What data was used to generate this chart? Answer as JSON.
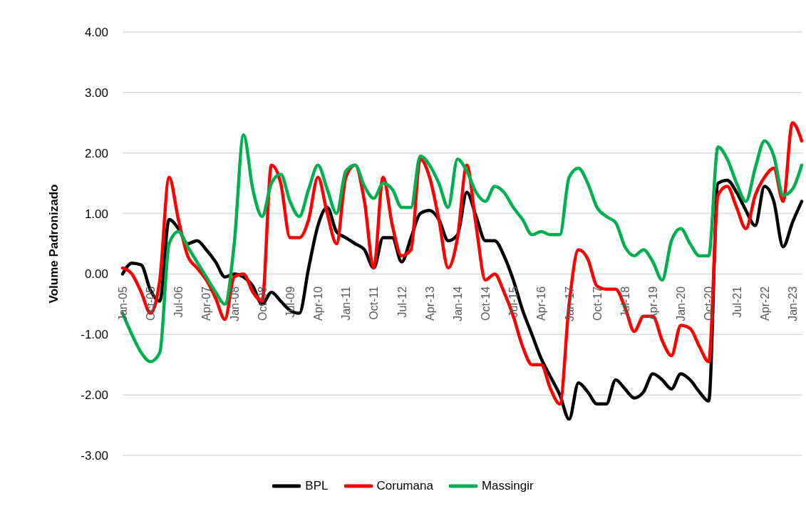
{
  "chart_data": {
    "type": "line",
    "ylabel": "Volume Padronizado",
    "categories": [
      "Jan-05",
      null,
      null,
      "Oct-05",
      null,
      null,
      "Jul-06",
      null,
      null,
      "Apr-07",
      null,
      null,
      "Jan-08",
      null,
      null,
      "Oct-08",
      null,
      null,
      "Jul-09",
      null,
      null,
      "Apr-10",
      null,
      null,
      "Jan-11",
      null,
      null,
      "Oct-11",
      null,
      null,
      "Jul-12",
      null,
      null,
      "Apr-13",
      null,
      null,
      "Jan-14",
      null,
      null,
      "Oct-14",
      null,
      null,
      "Jul-15",
      null,
      null,
      "Apr-16",
      null,
      null,
      "Jan-17",
      null,
      null,
      "Oct-17",
      null,
      null,
      "Jul-18",
      null,
      null,
      "Apr-19",
      null,
      null,
      "Jan-20",
      null,
      null,
      "Oct-20",
      null,
      null,
      "Jul-21",
      null,
      null,
      "Apr-22",
      null,
      null,
      "Jan-23",
      null
    ],
    "series": [
      {
        "name": "BPL",
        "color": "#000000",
        "values": [
          0.0,
          0.18,
          0.15,
          -0.27,
          -0.45,
          0.9,
          0.75,
          0.5,
          0.55,
          0.4,
          0.2,
          -0.05,
          0.0,
          -0.05,
          -0.2,
          -0.5,
          -0.3,
          -0.45,
          -0.6,
          -0.65,
          0.1,
          0.8,
          1.1,
          0.7,
          0.6,
          0.5,
          0.4,
          0.1,
          0.6,
          0.6,
          0.2,
          0.6,
          1.0,
          1.05,
          0.9,
          0.55,
          0.65,
          1.35,
          0.95,
          0.55,
          0.55,
          0.3,
          -0.1,
          -0.6,
          -1.0,
          -1.4,
          -1.7,
          -2.0,
          -2.4,
          -1.8,
          -1.95,
          -2.15,
          -2.15,
          -1.75,
          -1.9,
          -2.05,
          -1.95,
          -1.65,
          -1.75,
          -1.9,
          -1.65,
          -1.75,
          -1.95,
          -2.1,
          1.5,
          1.55,
          1.35,
          1.05,
          0.8,
          1.45,
          1.2,
          0.45,
          0.85,
          1.2
        ]
      },
      {
        "name": "Corumana",
        "color": "#ff0000",
        "values": [
          0.1,
          0.0,
          -0.3,
          -0.65,
          -0.1,
          1.6,
          0.9,
          0.3,
          0.1,
          -0.1,
          -0.4,
          -0.75,
          -0.05,
          0.0,
          -0.3,
          -0.45,
          1.8,
          1.5,
          0.6,
          0.6,
          0.9,
          1.6,
          1.0,
          0.5,
          1.6,
          1.8,
          1.2,
          0.1,
          1.6,
          0.8,
          0.3,
          0.4,
          1.9,
          1.6,
          0.9,
          0.1,
          0.6,
          1.8,
          0.8,
          -0.1,
          0.0,
          -0.3,
          -0.7,
          -1.2,
          -1.5,
          -1.5,
          -1.9,
          -2.15,
          -0.5,
          0.4,
          0.25,
          -0.2,
          -0.25,
          -0.25,
          -0.55,
          -0.95,
          -0.7,
          -0.7,
          -1.1,
          -1.35,
          -0.85,
          -0.9,
          -1.2,
          -1.45,
          1.3,
          1.45,
          1.1,
          0.75,
          1.3,
          1.6,
          1.75,
          1.2,
          2.5,
          2.2
        ]
      },
      {
        "name": "Massingir",
        "color": "#00b050",
        "values": [
          -0.65,
          -1.0,
          -1.3,
          -1.45,
          -1.3,
          0.5,
          0.7,
          0.45,
          0.2,
          -0.05,
          -0.3,
          -0.5,
          0.5,
          2.3,
          1.4,
          0.95,
          1.5,
          1.65,
          1.2,
          0.95,
          1.4,
          1.8,
          1.4,
          1.0,
          1.7,
          1.8,
          1.45,
          1.25,
          1.5,
          1.4,
          1.1,
          1.1,
          1.95,
          1.8,
          1.5,
          1.1,
          1.9,
          1.7,
          1.35,
          1.2,
          1.45,
          1.35,
          1.1,
          0.9,
          0.65,
          0.7,
          0.65,
          0.65,
          1.6,
          1.75,
          1.5,
          1.1,
          0.95,
          0.85,
          0.45,
          0.3,
          0.4,
          0.2,
          -0.1,
          0.55,
          0.75,
          0.5,
          0.3,
          0.3,
          2.1,
          1.9,
          1.5,
          1.2,
          1.75,
          2.2,
          1.95,
          1.3,
          1.4,
          1.8
        ]
      }
    ],
    "ylim": [
      -3,
      4
    ],
    "yticks": [
      {
        "value": -3,
        "label": "-3.00"
      },
      {
        "value": -2,
        "label": "-2.00"
      },
      {
        "value": -1,
        "label": "-1.00"
      },
      {
        "value": 0,
        "label": "0.00"
      },
      {
        "value": 1,
        "label": "1.00"
      },
      {
        "value": 2,
        "label": "2.00"
      },
      {
        "value": 3,
        "label": "3.00"
      },
      {
        "value": 4,
        "label": "4.00"
      }
    ],
    "grid": "y",
    "legend": "bottom",
    "marker": "none",
    "line_style": "solid"
  }
}
